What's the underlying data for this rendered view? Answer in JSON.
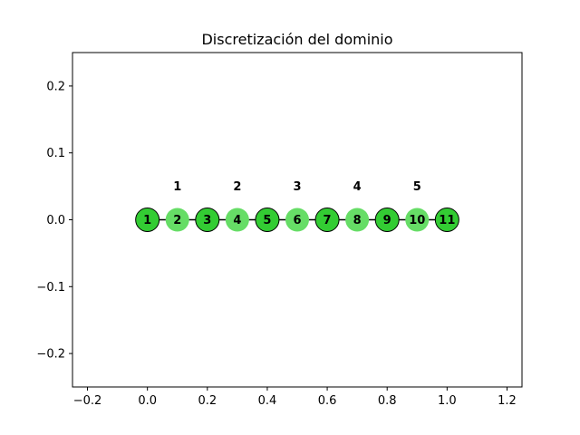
{
  "chart_data": {
    "type": "scatter",
    "title": "Discretización del dominio",
    "xlabel": "",
    "ylabel": "",
    "xlim": [
      -0.25,
      1.25
    ],
    "ylim": [
      -0.25,
      0.25
    ],
    "x_ticks": [
      -0.2,
      0.0,
      0.2,
      0.4,
      0.6,
      0.8,
      1.0,
      1.2
    ],
    "x_tick_labels": [
      "−0.2",
      "0.0",
      "0.2",
      "0.4",
      "0.6",
      "0.8",
      "1.0",
      "1.2"
    ],
    "y_ticks": [
      0.2,
      0.1,
      0.0,
      -0.1,
      -0.2
    ],
    "y_tick_labels": [
      "0.2",
      "0.1",
      "0.0",
      "−0.1",
      "−0.2"
    ],
    "grid": false,
    "nodes": [
      {
        "label": "1",
        "x": 0.0,
        "y": 0.0,
        "kind": "vertex"
      },
      {
        "label": "2",
        "x": 0.1,
        "y": 0.0,
        "kind": "midpoint"
      },
      {
        "label": "3",
        "x": 0.2,
        "y": 0.0,
        "kind": "vertex"
      },
      {
        "label": "4",
        "x": 0.3,
        "y": 0.0,
        "kind": "midpoint"
      },
      {
        "label": "5",
        "x": 0.4,
        "y": 0.0,
        "kind": "vertex"
      },
      {
        "label": "6",
        "x": 0.5,
        "y": 0.0,
        "kind": "midpoint"
      },
      {
        "label": "7",
        "x": 0.6,
        "y": 0.0,
        "kind": "vertex"
      },
      {
        "label": "8",
        "x": 0.7,
        "y": 0.0,
        "kind": "midpoint"
      },
      {
        "label": "9",
        "x": 0.8,
        "y": 0.0,
        "kind": "vertex"
      },
      {
        "label": "10",
        "x": 0.9,
        "y": 0.0,
        "kind": "midpoint"
      },
      {
        "label": "11",
        "x": 1.0,
        "y": 0.0,
        "kind": "vertex"
      }
    ],
    "elements": [
      {
        "label": "1",
        "x": 0.1,
        "y": 0.05
      },
      {
        "label": "2",
        "x": 0.3,
        "y": 0.05
      },
      {
        "label": "3",
        "x": 0.5,
        "y": 0.05
      },
      {
        "label": "4",
        "x": 0.7,
        "y": 0.05
      },
      {
        "label": "5",
        "x": 0.9,
        "y": 0.05
      }
    ],
    "colors": {
      "vertex": "#33cc33",
      "midpoint": "#66dd66",
      "line": "#000000"
    }
  }
}
